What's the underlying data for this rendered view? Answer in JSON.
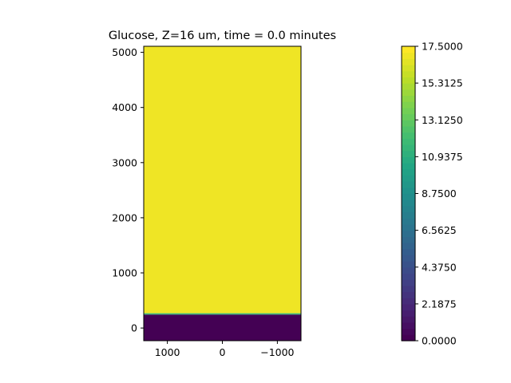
{
  "chart_data": {
    "type": "heatmap",
    "title": "Glucose, Z=16 um, time = 0.0 minutes",
    "xlabel": "",
    "ylabel": "",
    "x_axis": {
      "inverted": true,
      "range": [
        1430,
        -1430
      ],
      "ticks": [
        1000,
        0,
        -1000
      ],
      "tick_labels": [
        "1000",
        "0",
        "−1000"
      ]
    },
    "y_axis": {
      "range": [
        -230,
        5110
      ],
      "ticks": [
        0,
        1000,
        2000,
        3000,
        4000,
        5000
      ],
      "tick_labels": [
        "0",
        "1000",
        "2000",
        "3000",
        "4000",
        "5000"
      ]
    },
    "field": {
      "description_of_values": "uniform across x; low region below boundary, high region above",
      "boundary_y": 255,
      "transition_width": 25,
      "low_value": 0.0,
      "high_value": 16.9,
      "transition_value": 11.5
    },
    "colorbar": {
      "min": 0.0,
      "max": 17.5,
      "levels": 48,
      "tick_values": [
        0.0,
        2.1875,
        4.375,
        6.5625,
        8.75,
        10.9375,
        13.125,
        15.3125,
        17.5
      ],
      "tick_labels": [
        "0.0000",
        "2.1875",
        "4.3750",
        "6.5625",
        "8.7500",
        "10.9375",
        "13.1250",
        "15.3125",
        "17.5000"
      ],
      "colormap": "viridis"
    },
    "grid": false
  }
}
